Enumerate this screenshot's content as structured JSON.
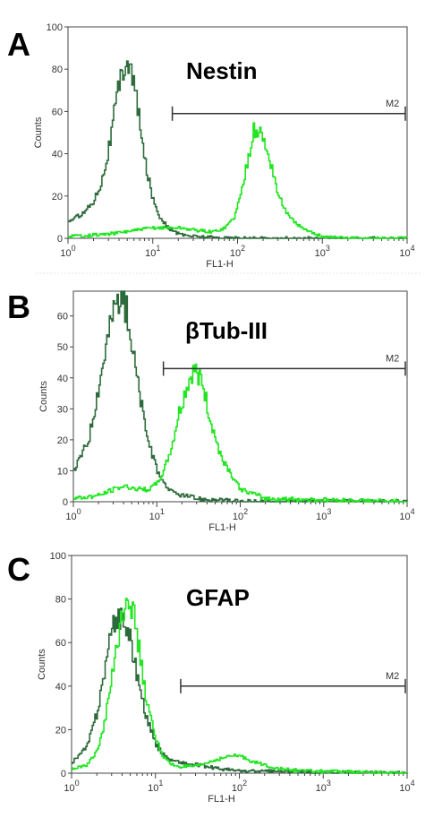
{
  "chart_data": [
    {
      "type": "line",
      "panel": "A",
      "title": "Nestin",
      "xlabel": "FL1-H",
      "ylabel": "Counts",
      "x_scale": "log",
      "xlim": [
        1,
        10000
      ],
      "ylim": [
        0,
        100
      ],
      "x_ticks": [
        1,
        10,
        100,
        1000,
        10000
      ],
      "x_tick_labels": [
        [
          "10",
          "0"
        ],
        [
          "10",
          "1"
        ],
        [
          "10",
          "2"
        ],
        [
          "10",
          "3"
        ],
        [
          "10",
          "4"
        ]
      ],
      "y_ticks": [
        0,
        20,
        40,
        60,
        80,
        100
      ],
      "y_tick_labels": [
        "0",
        "20",
        "40",
        "60",
        "80",
        "100"
      ],
      "gate": {
        "label": "M2",
        "from": 17,
        "to": 10000,
        "level": 59
      },
      "series": [
        {
          "color": "#2e6b3c",
          "x": [
            1,
            1.5,
            2,
            2.5,
            3,
            3.5,
            4,
            4.5,
            5,
            6,
            7,
            8,
            10,
            12,
            15,
            20,
            30,
            50,
            100
          ],
          "y": [
            8,
            12,
            18,
            28,
            43,
            60,
            73,
            82,
            85,
            72,
            52,
            36,
            18,
            10,
            5,
            2,
            1,
            0.5,
            0
          ]
        },
        {
          "color": "#22e622",
          "x": [
            1,
            3,
            10,
            20,
            30,
            50,
            70,
            90,
            110,
            130,
            150,
            170,
            200,
            250,
            300,
            400,
            600,
            1000,
            2000,
            10000
          ],
          "y": [
            1,
            2,
            5,
            5,
            4,
            3,
            5,
            10,
            22,
            38,
            50,
            52,
            46,
            34,
            20,
            10,
            4,
            1,
            0,
            0
          ]
        }
      ]
    },
    {
      "type": "line",
      "panel": "B",
      "title": "βTub-III",
      "xlabel": "FL1-H",
      "ylabel": "Counts",
      "x_scale": "log",
      "xlim": [
        1,
        10000
      ],
      "ylim": [
        0,
        68
      ],
      "x_ticks": [
        1,
        10,
        100,
        1000,
        10000
      ],
      "x_tick_labels": [
        [
          "10",
          "0"
        ],
        [
          "10",
          "1"
        ],
        [
          "10",
          "2"
        ],
        [
          "10",
          "3"
        ],
        [
          "10",
          "4"
        ]
      ],
      "y_ticks": [
        0,
        10,
        20,
        30,
        40,
        50,
        60
      ],
      "y_tick_labels": [
        "0",
        "10",
        "20",
        "30",
        "40",
        "50",
        "60"
      ],
      "gate": {
        "label": "M2",
        "from": 12,
        "to": 10000,
        "level": 43
      },
      "series": [
        {
          "color": "#2e6b3c",
          "x": [
            1,
            1.5,
            2,
            2.5,
            3,
            3.5,
            4,
            4.5,
            5,
            6,
            7,
            8,
            10,
            12,
            15,
            20,
            30,
            50,
            100,
            10000
          ],
          "y": [
            10,
            20,
            38,
            52,
            62,
            67,
            65,
            58,
            50,
            36,
            26,
            18,
            10,
            6,
            3,
            2,
            1,
            0.5,
            0,
            0
          ]
        },
        {
          "color": "#22e622",
          "x": [
            1,
            2,
            3,
            4,
            6,
            8,
            10,
            12,
            15,
            18,
            22,
            26,
            30,
            35,
            40,
            50,
            60,
            80,
            100,
            200,
            10000
          ],
          "y": [
            1,
            2,
            4,
            5,
            4,
            4,
            6,
            10,
            18,
            28,
            36,
            41,
            42,
            38,
            30,
            20,
            14,
            8,
            4,
            1,
            0
          ]
        }
      ]
    },
    {
      "type": "line",
      "panel": "C",
      "title": "GFAP",
      "xlabel": "FL1-H",
      "ylabel": "Counts",
      "x_scale": "log",
      "xlim": [
        1,
        10000
      ],
      "ylim": [
        0,
        100
      ],
      "x_ticks": [
        1,
        10,
        100,
        1000,
        10000
      ],
      "x_tick_labels": [
        [
          "10",
          "0"
        ],
        [
          "10",
          "1"
        ],
        [
          "10",
          "2"
        ],
        [
          "10",
          "3"
        ],
        [
          "10",
          "4"
        ]
      ],
      "y_ticks": [
        0,
        20,
        40,
        60,
        80,
        100
      ],
      "y_tick_labels": [
        "0",
        "20",
        "40",
        "60",
        "80",
        "100"
      ],
      "gate": {
        "label": "M2",
        "from": 20,
        "to": 10000,
        "level": 40
      },
      "series": [
        {
          "color": "#2e6b3c",
          "x": [
            1,
            1.5,
            2,
            2.5,
            3,
            3.5,
            4,
            5,
            6,
            7,
            8,
            10,
            12,
            15,
            20,
            25,
            30,
            40,
            60,
            100,
            10000
          ],
          "y": [
            5,
            12,
            28,
            50,
            65,
            72,
            72,
            60,
            45,
            32,
            24,
            13,
            9,
            6,
            5,
            4,
            4,
            3,
            2,
            1,
            0
          ]
        },
        {
          "color": "#22e622",
          "x": [
            1,
            1.5,
            2,
            2.5,
            3,
            3.5,
            4,
            4.5,
            5,
            6,
            7,
            8,
            10,
            12,
            15,
            20,
            30,
            50,
            80,
            100,
            150,
            300,
            600,
            10000
          ],
          "y": [
            2,
            4,
            10,
            25,
            45,
            62,
            75,
            82,
            80,
            62,
            44,
            30,
            16,
            8,
            4,
            3,
            3,
            6,
            8,
            8,
            5,
            2,
            1,
            0
          ]
        }
      ]
    }
  ]
}
